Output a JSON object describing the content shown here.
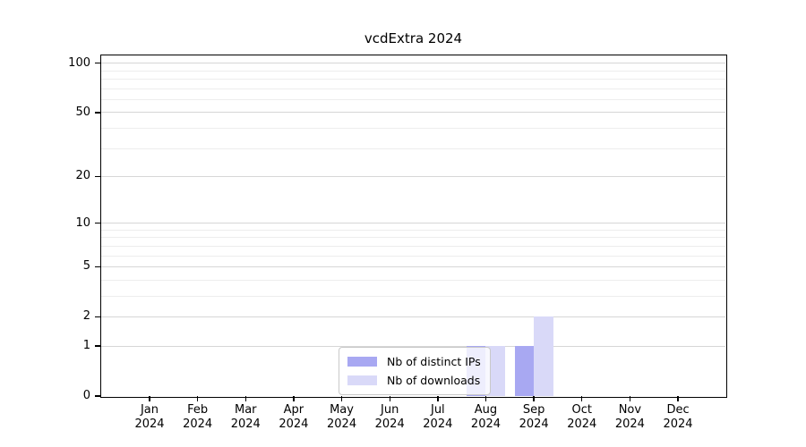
{
  "chart": {
    "title": "vcdExtra 2024",
    "legend": {
      "items": [
        {
          "label": "Nb of distinct IPs",
          "color": "#a8a8f2"
        },
        {
          "label": "Nb of downloads",
          "color": "#d9d9f8"
        }
      ]
    }
  },
  "chart_data": {
    "type": "bar",
    "title": "vcdExtra 2024",
    "categories": [
      "Jan",
      "Feb",
      "Mar",
      "Apr",
      "May",
      "Jun",
      "Jul",
      "Aug",
      "Sep",
      "Oct",
      "Nov",
      "Dec"
    ],
    "year_label": "2024",
    "series": [
      {
        "name": "Nb of distinct IPs",
        "color": "#a8a8f2",
        "values": [
          0,
          0,
          0,
          0,
          0,
          0,
          0,
          1,
          1,
          0,
          0,
          0
        ]
      },
      {
        "name": "Nb of downloads",
        "color": "#d9d9f8",
        "values": [
          0,
          0,
          0,
          0,
          0,
          0,
          0,
          1,
          2,
          0,
          0,
          0
        ]
      }
    ],
    "xlabel": "",
    "ylabel": "",
    "y_scale": "log1p",
    "y_major_ticks": [
      0,
      1,
      2,
      5,
      10,
      20,
      50,
      100
    ],
    "y_minor_ticks": [
      3,
      4,
      6,
      7,
      8,
      9,
      30,
      40,
      60,
      70,
      80,
      90
    ],
    "ylim": [
      0,
      112
    ],
    "grid": true,
    "legend_position": "lower center",
    "grid_major_color": "#d6d6d6",
    "grid_minor_color": "#ededed"
  }
}
